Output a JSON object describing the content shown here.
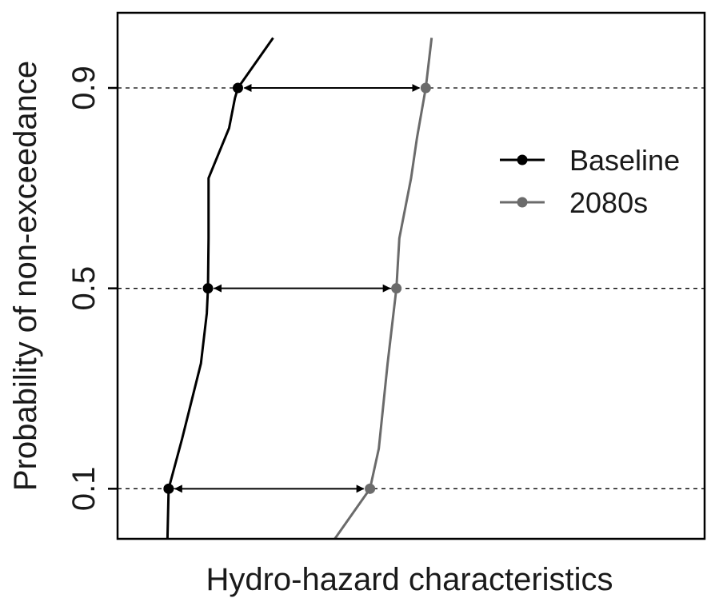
{
  "chart_data": {
    "type": "line",
    "title": "",
    "xlabel": "Hydro-hazard characteristics",
    "ylabel": "Probability of non-exceedance",
    "xlim": [
      0,
      1
    ],
    "ylim": [
      0,
      1.05
    ],
    "y_ticks": [
      0.1,
      0.5,
      0.9
    ],
    "y_tick_labels": [
      "0.1",
      "0.5",
      "0.9"
    ],
    "x_ticks": [],
    "reference_lines": [
      0.1,
      0.5,
      0.9
    ],
    "grid": false,
    "legend": {
      "position": "top-right",
      "entries": [
        "Baseline",
        "2080s"
      ]
    },
    "series": [
      {
        "name": "Baseline",
        "color": "#000000",
        "points": [
          {
            "x": 0.085,
            "y": 0.0
          },
          {
            "x": 0.087,
            "y": 0.1
          },
          {
            "x": 0.11,
            "y": 0.2
          },
          {
            "x": 0.142,
            "y": 0.35
          },
          {
            "x": 0.152,
            "y": 0.45
          },
          {
            "x": 0.154,
            "y": 0.5
          },
          {
            "x": 0.155,
            "y": 0.6
          },
          {
            "x": 0.155,
            "y": 0.72
          },
          {
            "x": 0.19,
            "y": 0.82
          },
          {
            "x": 0.2,
            "y": 0.88
          },
          {
            "x": 0.205,
            "y": 0.9
          },
          {
            "x": 0.265,
            "y": 1.0
          }
        ],
        "markers": [
          {
            "x": 0.087,
            "y": 0.1
          },
          {
            "x": 0.154,
            "y": 0.5
          },
          {
            "x": 0.205,
            "y": 0.9
          }
        ]
      },
      {
        "name": "2080s",
        "color": "#6b6b6b",
        "points": [
          {
            "x": 0.37,
            "y": 0.0
          },
          {
            "x": 0.43,
            "y": 0.1
          },
          {
            "x": 0.445,
            "y": 0.18
          },
          {
            "x": 0.46,
            "y": 0.35
          },
          {
            "x": 0.475,
            "y": 0.5
          },
          {
            "x": 0.48,
            "y": 0.6
          },
          {
            "x": 0.5,
            "y": 0.72
          },
          {
            "x": 0.51,
            "y": 0.8
          },
          {
            "x": 0.525,
            "y": 0.9
          },
          {
            "x": 0.53,
            "y": 0.95
          },
          {
            "x": 0.535,
            "y": 1.0
          }
        ],
        "markers": [
          {
            "x": 0.43,
            "y": 0.1
          },
          {
            "x": 0.475,
            "y": 0.5
          },
          {
            "x": 0.525,
            "y": 0.9
          }
        ]
      }
    ],
    "annotations": [
      {
        "type": "double-arrow",
        "y": 0.1,
        "x_from": 0.087,
        "x_to": 0.43
      },
      {
        "type": "double-arrow",
        "y": 0.5,
        "x_from": 0.154,
        "x_to": 0.475
      },
      {
        "type": "double-arrow",
        "y": 0.9,
        "x_from": 0.205,
        "x_to": 0.525
      }
    ]
  }
}
